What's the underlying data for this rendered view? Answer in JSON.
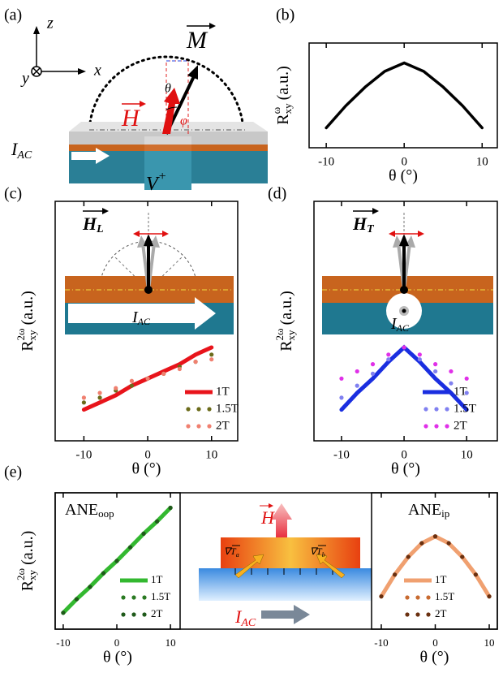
{
  "panels": [
    "(a)",
    "(b)",
    "(c)",
    "(d)",
    "(e)"
  ],
  "diagram_a": {
    "axis_z": "z",
    "axis_x": "x",
    "axis_y": "y",
    "magnetization": "M",
    "field": "H",
    "theta": "θ",
    "phi": "φ",
    "current": "I",
    "current_sub": "AC",
    "voltage": "V",
    "voltage_sup": "+"
  },
  "diagram_c": {
    "field": "H",
    "field_sub": "L",
    "current": "I",
    "current_sub": "AC"
  },
  "diagram_d": {
    "field": "H",
    "field_sub": "T",
    "current": "I",
    "current_sub": "AC"
  },
  "diagram_e": {
    "field": "H",
    "grad_a": "∇T",
    "grad_a_sub": "a",
    "grad_b": "∇T",
    "grad_b_sub": "b",
    "current": "I",
    "current_sub": "AC"
  },
  "chart_data": [
    {
      "type": "line",
      "x": [
        -10,
        -7.5,
        -5,
        -2.5,
        0,
        2.5,
        5,
        7.5,
        10
      ],
      "xlim": [
        -12.2,
        11.95
      ],
      "xticks": [
        -10,
        0,
        10
      ],
      "ylim": [
        0,
        1
      ],
      "x_label": "θ (°)",
      "y_label": {
        "main": "R",
        "sup": "ω",
        "sub": "xy",
        "unit": "(a.u.)"
      },
      "series": [
        {
          "color": "#000000",
          "style": "line",
          "values": [
            0.19,
            0.4,
            0.58,
            0.73,
            0.81,
            0.73,
            0.58,
            0.4,
            0.19
          ]
        }
      ]
    },
    {
      "type": "line",
      "x": [
        -10,
        -7.5,
        -5,
        -2.5,
        0,
        2.5,
        5,
        7.5,
        10
      ],
      "xlim": [
        -14.5,
        14.1
      ],
      "xticks": [
        -10,
        0,
        10
      ],
      "ylim": [
        0,
        1
      ],
      "x_label": "θ (°)",
      "y_label": {
        "main": "R",
        "sup": "2ω",
        "sub": "xy",
        "unit": "(a.u.)"
      },
      "legend": "lower right",
      "series": [
        {
          "name": "1T",
          "color": "#e8141b",
          "style": "line",
          "values": [
            0.13,
            0.16,
            0.19,
            0.23,
            0.26,
            0.29,
            0.32,
            0.36,
            0.39
          ]
        },
        {
          "name": "1.5T",
          "color": "#6b6b1a",
          "style": "dots",
          "values": [
            0.16,
            0.18,
            0.21,
            0.23,
            0.26,
            0.28,
            0.31,
            0.33,
            0.36
          ]
        },
        {
          "name": "2T",
          "color": "#f08070",
          "style": "dots",
          "values": [
            0.18,
            0.2,
            0.22,
            0.25,
            0.26,
            0.28,
            0.3,
            0.33,
            0.34
          ]
        }
      ]
    },
    {
      "type": "line",
      "x": [
        -10,
        -7.5,
        -5,
        -2.5,
        0,
        2.5,
        5,
        7.5,
        10
      ],
      "xlim": [
        -14.4,
        14.9
      ],
      "xticks": [
        -10,
        0,
        10
      ],
      "ylim": [
        0,
        1
      ],
      "x_label": "θ (°)",
      "y_label": {
        "main": "R",
        "sup": "2ω",
        "sub": "xy",
        "unit": "(a.u.)"
      },
      "legend": "lower right",
      "series": [
        {
          "name": "1T",
          "color": "#1a2ee0",
          "style": "line",
          "values": [
            0.13,
            0.2,
            0.26,
            0.33,
            0.39,
            0.33,
            0.26,
            0.2,
            0.13
          ]
        },
        {
          "name": "1.5T",
          "color": "#8080f0",
          "style": "dots",
          "values": [
            0.18,
            0.23,
            0.28,
            0.34,
            0.39,
            0.34,
            0.29,
            0.24,
            0.2
          ]
        },
        {
          "name": "2T",
          "color": "#e030e8",
          "style": "dots",
          "values": [
            0.26,
            0.29,
            0.32,
            0.36,
            0.39,
            0.36,
            0.32,
            0.29,
            0.26
          ]
        }
      ]
    },
    {
      "type": "line",
      "x": [
        -10,
        -7.5,
        -5,
        -2.5,
        0,
        2.5,
        5,
        7.5,
        10
      ],
      "xlim": [
        -11.5,
        11.8
      ],
      "xticks": [
        -10,
        0,
        10
      ],
      "ylim": [
        0,
        1
      ],
      "x_label": "θ (°)",
      "y_label": {
        "main": "R",
        "sup": "2ω",
        "sub": "xy",
        "unit": "(a.u.)"
      },
      "annotation": {
        "main": "ANE",
        "sub": "oop"
      },
      "legend": "lower right",
      "series": [
        {
          "name": "1T",
          "color": "#33b830",
          "style": "line",
          "values": [
            0.12,
            0.22,
            0.31,
            0.41,
            0.5,
            0.6,
            0.7,
            0.79,
            0.89
          ]
        },
        {
          "name": "1.5T",
          "color": "#2a7a22",
          "style": "dots",
          "values": [
            0.12,
            0.22,
            0.31,
            0.41,
            0.5,
            0.6,
            0.7,
            0.79,
            0.89
          ]
        },
        {
          "name": "2T",
          "color": "#1f5a1a",
          "style": "dots",
          "values": [
            0.12,
            0.22,
            0.31,
            0.41,
            0.5,
            0.6,
            0.7,
            0.79,
            0.89
          ]
        }
      ]
    },
    {
      "type": "line",
      "x": [
        -10,
        -7.5,
        -5,
        -2.5,
        0,
        2.5,
        5,
        7.5,
        10
      ],
      "xlim": [
        -11.8,
        11.5
      ],
      "xticks": [
        -10,
        0,
        10
      ],
      "ylim": [
        0,
        1
      ],
      "x_label": "θ (°)",
      "annotation": {
        "main": "ANE",
        "sub": "ip"
      },
      "legend": "lower right",
      "series": [
        {
          "name": "1T",
          "color": "#f0a070",
          "style": "line",
          "values": [
            0.24,
            0.4,
            0.53,
            0.63,
            0.68,
            0.63,
            0.53,
            0.4,
            0.24
          ]
        },
        {
          "name": "1.5T",
          "color": "#c86a30",
          "style": "dots",
          "values": [
            0.24,
            0.4,
            0.53,
            0.63,
            0.68,
            0.63,
            0.53,
            0.4,
            0.24
          ]
        },
        {
          "name": "2T",
          "color": "#6a3010",
          "style": "dots",
          "values": [
            0.24,
            0.4,
            0.53,
            0.63,
            0.68,
            0.63,
            0.53,
            0.4,
            0.24
          ]
        }
      ]
    }
  ]
}
